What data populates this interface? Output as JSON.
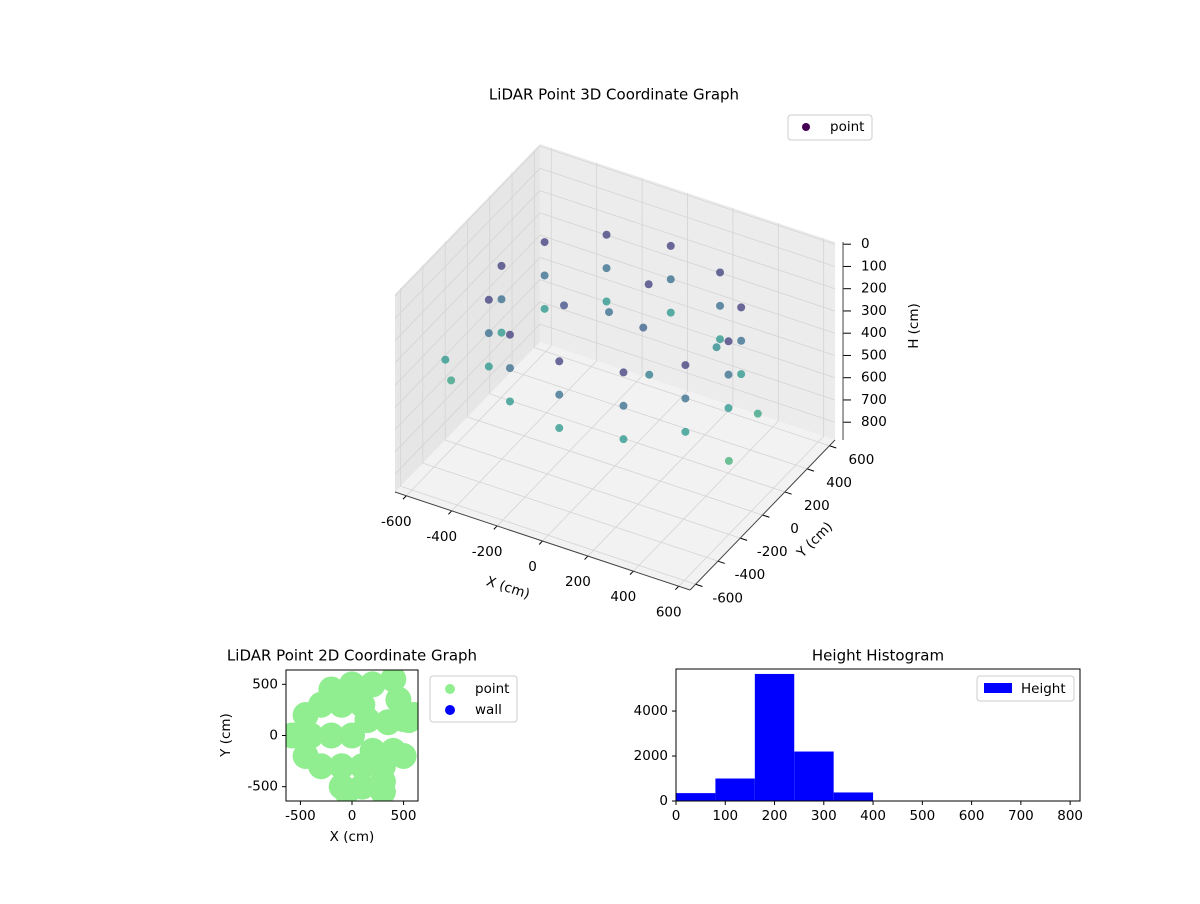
{
  "chart_data": [
    {
      "type": "scatter3d",
      "title": "LiDAR Point 3D Coordinate Graph",
      "xlabel": "X (cm)",
      "ylabel": "Y (cm)",
      "zlabel": "H (cm)",
      "xlim": [
        -650,
        650
      ],
      "ylim": [
        -650,
        650
      ],
      "zlim": [
        880,
        -10
      ],
      "xticks": [
        -600,
        -400,
        -200,
        0,
        200,
        400,
        600
      ],
      "yticks": [
        -600,
        -400,
        -200,
        0,
        200,
        400,
        600
      ],
      "zticks": [
        0,
        100,
        200,
        300,
        400,
        500,
        600,
        700,
        800
      ],
      "grid": true,
      "legend": "upper right",
      "series": [
        {
          "name": "point",
          "colormap": "viridis",
          "x": [
            500,
            433,
            250,
            0,
            -250,
            -433,
            -500,
            -433,
            -250,
            0,
            250,
            433,
            500,
            433,
            250,
            0,
            -250,
            -433,
            -500,
            -433,
            -250,
            0,
            250,
            433,
            500,
            433,
            250,
            0,
            -250,
            -433,
            -500,
            -433,
            -250,
            0,
            250,
            433,
            100,
            -100,
            200,
            -200,
            50,
            300,
            -600,
            -550,
            600,
            580
          ],
          "y": [
            0,
            250,
            433,
            500,
            433,
            250,
            0,
            -250,
            -433,
            -500,
            -433,
            -250,
            0,
            250,
            433,
            500,
            433,
            250,
            0,
            -250,
            -433,
            -500,
            -433,
            -250,
            0,
            250,
            433,
            500,
            433,
            250,
            0,
            -250,
            -433,
            -500,
            -433,
            -250,
            50,
            150,
            -100,
            -50,
            200,
            300,
            -300,
            -350,
            -200,
            100
          ],
          "z": [
            150,
            150,
            150,
            150,
            150,
            150,
            150,
            150,
            150,
            150,
            150,
            150,
            300,
            300,
            300,
            300,
            300,
            300,
            300,
            300,
            300,
            300,
            300,
            300,
            450,
            450,
            450,
            450,
            450,
            450,
            450,
            450,
            450,
            450,
            450,
            450,
            250,
            300,
            350,
            200,
            150,
            400,
            450,
            500,
            550,
            500
          ]
        }
      ]
    },
    {
      "type": "scatter",
      "title": "LiDAR Point 2D Coordinate Graph",
      "xlabel": "X (cm)",
      "ylabel": "Y (cm)",
      "xlim": [
        -640,
        640
      ],
      "ylim": [
        -640,
        640
      ],
      "xticks": [
        -500,
        0,
        500
      ],
      "yticks": [
        -500,
        0,
        500
      ],
      "legend": "outside right",
      "series": [
        {
          "name": "point",
          "color": "#90ee90",
          "x": [
            -400,
            -200,
            0,
            -300,
            -100,
            100,
            300,
            -100,
            100,
            300,
            -300,
            -100,
            100,
            0,
            -200,
            200,
            150,
            -450,
            -450,
            200,
            400,
            500,
            450,
            550,
            -580,
            400,
            -50,
            300,
            350,
            500,
            600
          ],
          "y": [
            0,
            0,
            0,
            -300,
            -300,
            -300,
            -300,
            -500,
            -500,
            -450,
            300,
            300,
            300,
            500,
            450,
            500,
            150,
            -200,
            200,
            -150,
            -150,
            -200,
            350,
            150,
            0,
            550,
            -550,
            -550,
            130,
            160,
            200
          ]
        },
        {
          "name": "wall",
          "color": "#0000ff",
          "x": [],
          "y": []
        }
      ]
    },
    {
      "type": "histogram",
      "title": "Height Histogram",
      "xlim": [
        0,
        820
      ],
      "ylim": [
        0,
        5870
      ],
      "xticks": [
        0,
        100,
        200,
        300,
        400,
        500,
        600,
        700,
        800
      ],
      "yticks": [
        0,
        2000,
        4000
      ],
      "legend": "upper right",
      "series": [
        {
          "name": "Height",
          "color": "#0000ff",
          "bins": [
            0,
            80,
            160,
            240,
            320,
            400,
            480,
            560,
            640,
            720,
            800
          ],
          "counts": [
            350,
            1000,
            5650,
            2200,
            380,
            0,
            0,
            0,
            0,
            0
          ]
        }
      ]
    }
  ]
}
